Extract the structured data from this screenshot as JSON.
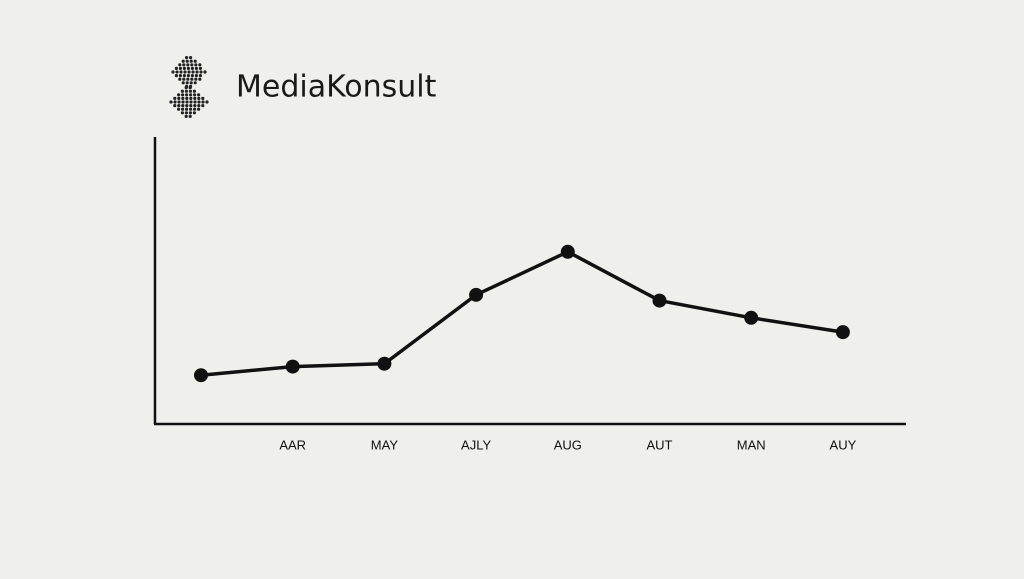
{
  "header": {
    "brand": "MediaKonsult"
  },
  "chart_data": {
    "type": "line",
    "categories": [
      null,
      "AAR",
      "MAY",
      "AJLY",
      "AUG",
      "AUT",
      "MAN",
      "AUY"
    ],
    "values": [
      17,
      20,
      21,
      45,
      60,
      43,
      37,
      32
    ],
    "ylim": [
      0,
      100
    ],
    "color": "#111111"
  }
}
